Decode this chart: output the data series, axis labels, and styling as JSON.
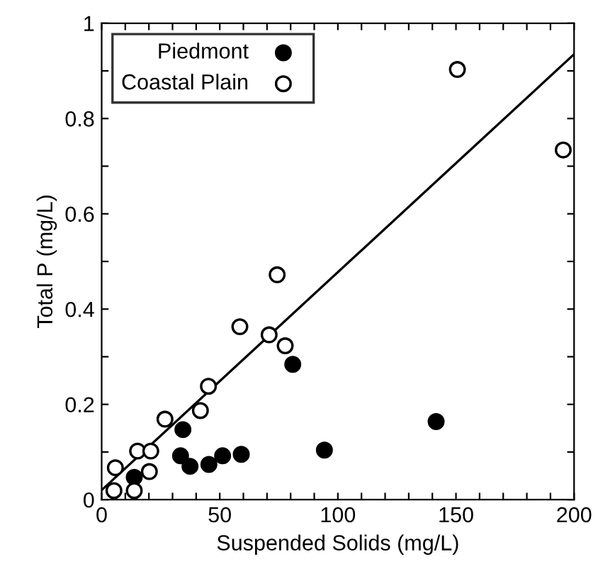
{
  "chart_data": {
    "type": "scatter",
    "xlabel": "Suspended Solids (mg/L)",
    "ylabel": "Total P (mg/L)",
    "xlim": [
      0,
      200
    ],
    "ylim": [
      0,
      1
    ],
    "xticks": [
      0,
      {
        "value": 10,
        "label": null
      },
      {
        "value": 20,
        "label": null
      },
      {
        "value": 30,
        "label": null
      },
      {
        "value": 40,
        "label": null
      },
      50,
      {
        "value": 60,
        "label": null
      },
      {
        "value": 70,
        "label": null
      },
      {
        "value": 80,
        "label": null
      },
      {
        "value": 90,
        "label": null
      },
      100,
      {
        "value": 110,
        "label": null
      },
      {
        "value": 120,
        "label": null
      },
      {
        "value": 130,
        "label": null
      },
      {
        "value": 140,
        "label": null
      },
      150,
      {
        "value": 160,
        "label": null
      },
      {
        "value": 170,
        "label": null
      },
      {
        "value": 180,
        "label": null
      },
      {
        "value": 190,
        "label": null
      },
      200
    ],
    "yticks": [
      0,
      {
        "value": 0.1,
        "label": null
      },
      0.2,
      {
        "value": 0.3,
        "label": null
      },
      0.4,
      {
        "value": 0.5,
        "label": null
      },
      0.6,
      {
        "value": 0.7,
        "label": null
      },
      0.8,
      {
        "value": 0.9,
        "label": null
      },
      1
    ],
    "grid": false,
    "legend": "top left",
    "series": [
      {
        "name": "Piedmont",
        "color": "#000000",
        "marker": "circle",
        "x": [
          13.8,
          34.4,
          33.4,
          37.4,
          45.4,
          51.2,
          59.1,
          80.9,
          94.3,
          141.6
        ],
        "values": [
          0.047,
          0.147,
          0.092,
          0.07,
          0.074,
          0.092,
          0.095,
          0.284,
          0.104,
          0.164
        ]
      },
      {
        "name": "Coastal Plain",
        "color": "#ffffff",
        "marker": "circle",
        "x": [
          5.8,
          5.2,
          13.8,
          15.2,
          20.8,
          20.2,
          26.8,
          41.8,
          45.2,
          58.5,
          70.9,
          74.3,
          77.7,
          150.6,
          195.4
        ],
        "values": [
          0.067,
          0.019,
          0.019,
          0.102,
          0.102,
          0.059,
          0.169,
          0.187,
          0.238,
          0.363,
          0.346,
          0.472,
          0.323,
          0.903,
          0.734
        ]
      },
      {
        "type": "line",
        "color": "#000000",
        "x": [
          0,
          200
        ],
        "values": [
          0.02,
          0.935
        ]
      }
    ]
  }
}
